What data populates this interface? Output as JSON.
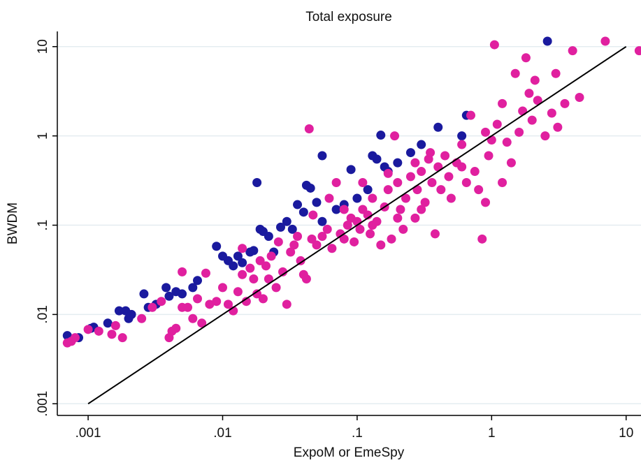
{
  "chart_data": {
    "type": "scatter",
    "title": "Total exposure",
    "x_label": "ExpoM or EmeSpy",
    "y_label": "BWDM",
    "xscale": "log",
    "yscale": "log",
    "xlim": [
      0.00059,
      12.9
    ],
    "ylim": [
      0.00074,
      14.8
    ],
    "xticks": [
      {
        "value": 0.001,
        "label": ".001"
      },
      {
        "value": 0.01,
        "label": ".01"
      },
      {
        "value": 0.1,
        "label": ".1"
      },
      1,
      10
    ],
    "yticks": [
      {
        "value": 0.001,
        "label": ".001"
      },
      {
        "value": 0.01,
        "label": ".01"
      },
      {
        "value": 0.1,
        "label": ".1"
      },
      1,
      10
    ],
    "grid": true,
    "reference_line": {
      "color": "#000000",
      "x": [
        0.001,
        10
      ],
      "y": [
        0.001,
        10
      ]
    },
    "series": [
      {
        "color": "#1a1a9e",
        "x": [
          0.0007,
          0.00085,
          0.00105,
          0.0011,
          0.0014,
          0.0017,
          0.0019,
          0.002,
          0.0021,
          0.0026,
          0.0028,
          0.0032,
          0.0038,
          0.004,
          0.0045,
          0.005,
          0.006,
          0.0065,
          0.009,
          0.01,
          0.011,
          0.012,
          0.013,
          0.014,
          0.016,
          0.017,
          0.018,
          0.019,
          0.02,
          0.022,
          0.024,
          0.027,
          0.03,
          0.033,
          0.036,
          0.04,
          0.042,
          0.045,
          0.05,
          0.055,
          0.07,
          0.08,
          0.09,
          0.1,
          0.12,
          0.13,
          0.14,
          0.15,
          0.16,
          0.17,
          0.055,
          0.65,
          0.4,
          2.6,
          0.6,
          0.3,
          0.25,
          0.2
        ],
        "y": [
          0.0058,
          0.0055,
          0.007,
          0.0072,
          0.008,
          0.011,
          0.011,
          0.009,
          0.01,
          0.017,
          0.012,
          0.013,
          0.02,
          0.016,
          0.018,
          0.017,
          0.02,
          0.024,
          0.058,
          0.045,
          0.04,
          0.035,
          0.045,
          0.038,
          0.05,
          0.052,
          0.3,
          0.09,
          0.085,
          0.075,
          0.05,
          0.095,
          0.11,
          0.09,
          0.17,
          0.14,
          0.28,
          0.26,
          0.18,
          0.11,
          0.15,
          0.17,
          0.42,
          0.2,
          0.25,
          0.6,
          0.55,
          1.02,
          0.45,
          0.4,
          0.6,
          1.7,
          1.25,
          11.5,
          1.0,
          0.8,
          0.65,
          0.5
        ]
      },
      {
        "color": "#e0209f",
        "x": [
          0.0007,
          0.00075,
          0.0008,
          0.001,
          0.0012,
          0.0015,
          0.0016,
          0.0018,
          0.0025,
          0.003,
          0.0035,
          0.004,
          0.0042,
          0.0045,
          0.005,
          0.005,
          0.0055,
          0.006,
          0.0065,
          0.007,
          0.0075,
          0.008,
          0.009,
          0.01,
          0.011,
          0.012,
          0.013,
          0.014,
          0.015,
          0.016,
          0.017,
          0.018,
          0.019,
          0.02,
          0.021,
          0.023,
          0.025,
          0.026,
          0.028,
          0.03,
          0.032,
          0.034,
          0.036,
          0.038,
          0.04,
          0.042,
          0.044,
          0.046,
          0.05,
          0.055,
          0.06,
          0.065,
          0.07,
          0.075,
          0.08,
          0.085,
          0.09,
          0.095,
          0.1,
          0.105,
          0.11,
          0.12,
          0.125,
          0.13,
          0.14,
          0.15,
          0.16,
          0.17,
          0.18,
          0.19,
          0.2,
          0.21,
          0.22,
          0.23,
          0.25,
          0.27,
          0.28,
          0.3,
          0.32,
          0.34,
          0.36,
          0.38,
          0.4,
          0.42,
          0.45,
          0.48,
          0.5,
          0.55,
          0.6,
          0.65,
          0.7,
          0.75,
          0.8,
          0.85,
          0.9,
          0.95,
          1.0,
          1.05,
          1.1,
          1.2,
          1.3,
          1.4,
          1.5,
          1.6,
          1.7,
          1.8,
          1.9,
          2.0,
          2.1,
          2.2,
          2.5,
          2.8,
          3.0,
          3.1,
          3.5,
          4.0,
          4.5,
          7.0,
          12.5,
          0.014,
          0.022,
          0.6,
          0.35,
          0.27,
          0.17,
          0.11,
          0.13,
          0.08,
          0.062,
          0.047,
          0.2,
          1.2,
          0.9,
          0.3
        ],
        "y": [
          0.0048,
          0.005,
          0.0055,
          0.0068,
          0.0065,
          0.006,
          0.0075,
          0.0055,
          0.009,
          0.012,
          0.014,
          0.0055,
          0.0065,
          0.007,
          0.03,
          0.012,
          0.012,
          0.009,
          0.015,
          0.008,
          0.029,
          0.013,
          0.014,
          0.02,
          0.013,
          0.011,
          0.018,
          0.028,
          0.014,
          0.033,
          0.025,
          0.017,
          0.04,
          0.015,
          0.035,
          0.045,
          0.02,
          0.065,
          0.03,
          0.013,
          0.05,
          0.06,
          0.075,
          0.04,
          0.028,
          0.025,
          1.2,
          0.07,
          0.06,
          0.075,
          0.09,
          0.055,
          0.3,
          0.08,
          0.07,
          0.1,
          0.12,
          0.065,
          0.11,
          0.09,
          0.15,
          0.13,
          0.08,
          0.2,
          0.11,
          0.06,
          0.16,
          0.25,
          0.07,
          1.0,
          0.3,
          0.15,
          0.09,
          0.2,
          0.35,
          0.12,
          0.25,
          0.4,
          0.18,
          0.55,
          0.3,
          0.08,
          0.45,
          0.25,
          0.6,
          0.35,
          0.2,
          0.5,
          0.8,
          0.3,
          1.7,
          0.4,
          0.25,
          0.07,
          1.1,
          0.6,
          0.9,
          10.5,
          1.35,
          2.3,
          0.85,
          0.5,
          5.0,
          1.1,
          1.9,
          7.5,
          3.0,
          1.5,
          4.2,
          2.5,
          1.0,
          1.8,
          5.0,
          1.25,
          2.3,
          9.0,
          2.7,
          11.5,
          9.0,
          0.055,
          0.025,
          0.45,
          0.65,
          0.5,
          0.38,
          0.3,
          0.1,
          0.15,
          0.2,
          0.13,
          0.12,
          0.3,
          0.18,
          0.15
        ]
      }
    ]
  }
}
